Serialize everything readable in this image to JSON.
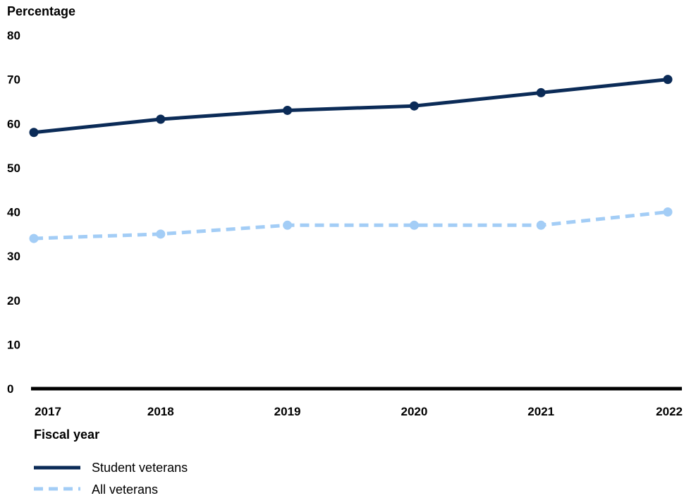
{
  "chart_data": {
    "type": "line",
    "title": "",
    "ylabel": "Percentage",
    "xlabel": "Fiscal year",
    "x": [
      "2017",
      "2018",
      "2019",
      "2020",
      "2021",
      "2022"
    ],
    "ylim": [
      0,
      80
    ],
    "yticks": [
      "0",
      "10",
      "20",
      "30",
      "40",
      "50",
      "60",
      "70",
      "80"
    ],
    "grid": false,
    "legend_position": "bottom-left",
    "series": [
      {
        "name": "Student veterans",
        "values": [
          58,
          61,
          63,
          64,
          67,
          70
        ],
        "color": "#0b2b57",
        "style": "solid"
      },
      {
        "name": "All veterans",
        "values": [
          34,
          35,
          37,
          37,
          37,
          40
        ],
        "color": "#a3cdf6",
        "style": "dashed"
      }
    ],
    "axis_color": "#000000"
  }
}
